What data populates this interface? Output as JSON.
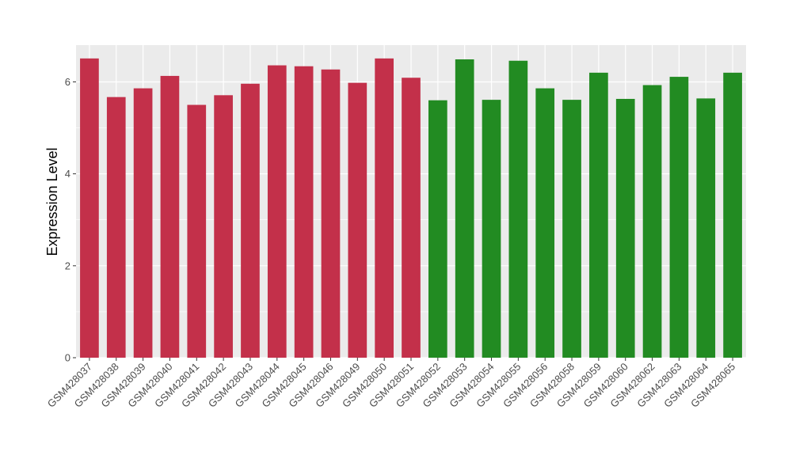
{
  "chart_data": {
    "type": "bar",
    "title": "",
    "xlabel": "",
    "ylabel": "Expression Level",
    "ylim": [
      0,
      6.8
    ],
    "yticks": [
      0,
      2,
      4,
      6
    ],
    "grid": true,
    "legend": "none",
    "categories": [
      "GSM428037",
      "GSM428038",
      "GSM428039",
      "GSM428040",
      "GSM428041",
      "GSM428042",
      "GSM428043",
      "GSM428044",
      "GSM428045",
      "GSM428046",
      "GSM428049",
      "GSM428050",
      "GSM428051",
      "GSM428052",
      "GSM428053",
      "GSM428054",
      "GSM428055",
      "GSM428056",
      "GSM428058",
      "GSM428059",
      "GSM428060",
      "GSM428062",
      "GSM428063",
      "GSM428064",
      "GSM428065"
    ],
    "values": [
      6.51,
      5.67,
      5.86,
      6.13,
      5.5,
      5.71,
      5.96,
      6.36,
      6.34,
      6.27,
      5.98,
      6.51,
      6.09,
      5.6,
      6.49,
      5.61,
      6.46,
      5.86,
      5.61,
      6.2,
      5.63,
      5.93,
      6.11,
      5.64,
      6.2
    ],
    "groups": [
      "a",
      "a",
      "a",
      "a",
      "a",
      "a",
      "a",
      "a",
      "a",
      "a",
      "a",
      "a",
      "a",
      "b",
      "b",
      "b",
      "b",
      "b",
      "b",
      "b",
      "b",
      "b",
      "b",
      "b",
      "b"
    ],
    "group_colors": {
      "a": "#c3304a",
      "b": "#228b22"
    },
    "panel_background": "#ebebeb",
    "grid_color": "#ffffff"
  }
}
